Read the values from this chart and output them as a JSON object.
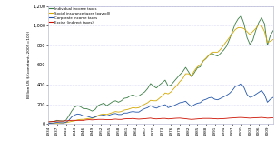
{
  "title": "",
  "ylabel": "Billion US $ (constant, 2005=100)",
  "ylim": [
    0,
    1200
  ],
  "yticks": [
    0,
    200,
    400,
    600,
    800,
    1000,
    1200
  ],
  "years": [
    1934,
    1935,
    1936,
    1937,
    1938,
    1939,
    1940,
    1941,
    1942,
    1943,
    1944,
    1945,
    1946,
    1947,
    1948,
    1949,
    1950,
    1951,
    1952,
    1953,
    1954,
    1955,
    1956,
    1957,
    1958,
    1959,
    1960,
    1961,
    1962,
    1963,
    1964,
    1965,
    1966,
    1967,
    1968,
    1969,
    1970,
    1971,
    1972,
    1973,
    1974,
    1975,
    1976,
    1977,
    1978,
    1979,
    1980,
    1981,
    1982,
    1983,
    1984,
    1985,
    1986,
    1987,
    1988,
    1989,
    1990,
    1991,
    1992,
    1993,
    1994,
    1995,
    1996,
    1997,
    1998,
    1999,
    2000,
    2001,
    2002,
    2003,
    2004,
    2005,
    2006,
    2007,
    2008,
    2009,
    2010,
    2011
  ],
  "individual": [
    20,
    22,
    25,
    35,
    30,
    28,
    35,
    80,
    130,
    170,
    185,
    175,
    155,
    155,
    145,
    130,
    145,
    185,
    200,
    210,
    185,
    205,
    225,
    235,
    220,
    235,
    260,
    265,
    285,
    295,
    280,
    285,
    305,
    325,
    360,
    410,
    385,
    365,
    395,
    420,
    445,
    385,
    395,
    430,
    465,
    500,
    530,
    575,
    530,
    480,
    520,
    570,
    580,
    640,
    665,
    700,
    720,
    700,
    690,
    720,
    750,
    790,
    860,
    940,
    1020,
    1070,
    1100,
    1020,
    880,
    810,
    850,
    950,
    1030,
    1080,
    1020,
    800,
    900,
    950
  ],
  "social_insurance": [
    5,
    6,
    7,
    8,
    9,
    10,
    12,
    18,
    25,
    30,
    40,
    45,
    45,
    50,
    55,
    55,
    65,
    85,
    95,
    100,
    95,
    105,
    115,
    125,
    120,
    125,
    140,
    145,
    155,
    165,
    160,
    165,
    185,
    200,
    215,
    240,
    235,
    235,
    260,
    285,
    315,
    305,
    325,
    360,
    390,
    430,
    460,
    510,
    510,
    490,
    540,
    580,
    600,
    640,
    670,
    700,
    730,
    730,
    730,
    760,
    800,
    840,
    880,
    920,
    960,
    980,
    980,
    970,
    940,
    910,
    940,
    970,
    1010,
    1000,
    940,
    830,
    840,
    860
  ],
  "corporate": [
    5,
    7,
    10,
    15,
    12,
    10,
    15,
    35,
    70,
    90,
    100,
    95,
    80,
    80,
    70,
    60,
    70,
    80,
    85,
    90,
    80,
    90,
    100,
    105,
    95,
    95,
    110,
    110,
    120,
    125,
    120,
    120,
    140,
    155,
    165,
    185,
    170,
    160,
    175,
    185,
    195,
    165,
    175,
    185,
    200,
    215,
    220,
    230,
    200,
    175,
    195,
    210,
    215,
    240,
    250,
    265,
    270,
    250,
    245,
    260,
    275,
    290,
    310,
    340,
    380,
    390,
    410,
    370,
    300,
    270,
    280,
    300,
    320,
    340,
    300,
    220,
    250,
    270
  ],
  "excise": [
    20,
    22,
    25,
    28,
    28,
    28,
    30,
    32,
    35,
    35,
    35,
    35,
    35,
    40,
    42,
    40,
    42,
    45,
    45,
    45,
    42,
    42,
    45,
    48,
    45,
    45,
    50,
    52,
    52,
    55,
    50,
    48,
    50,
    52,
    55,
    58,
    52,
    50,
    52,
    55,
    55,
    50,
    52,
    55,
    57,
    58,
    55,
    52,
    48,
    45,
    47,
    50,
    52,
    55,
    55,
    55,
    54,
    52,
    50,
    52,
    53,
    55,
    58,
    60,
    62,
    64,
    65,
    63,
    60,
    58,
    60,
    62,
    63,
    65,
    62,
    58,
    60,
    62
  ],
  "line_colors": {
    "individual": "#3a7d44",
    "social_insurance": "#d4a800",
    "corporate": "#2255aa",
    "excise": "#cc1100"
  },
  "legend_labels": {
    "individual": "Individual income taxes",
    "social_insurance": "Social insurance taxes (payroll)",
    "corporate": "Corporate income taxes",
    "excise": "Excise (indirect taxes)"
  },
  "background_color": "#ffffff",
  "grid_color": "#cccccc",
  "xtick_years": [
    1934,
    1937,
    1940,
    1943,
    1946,
    1949,
    1952,
    1955,
    1958,
    1961,
    1964,
    1967,
    1970,
    1973,
    1976,
    1979,
    1982,
    1985,
    1988,
    1991,
    1994,
    1997,
    2000,
    2003,
    2006,
    2009
  ]
}
